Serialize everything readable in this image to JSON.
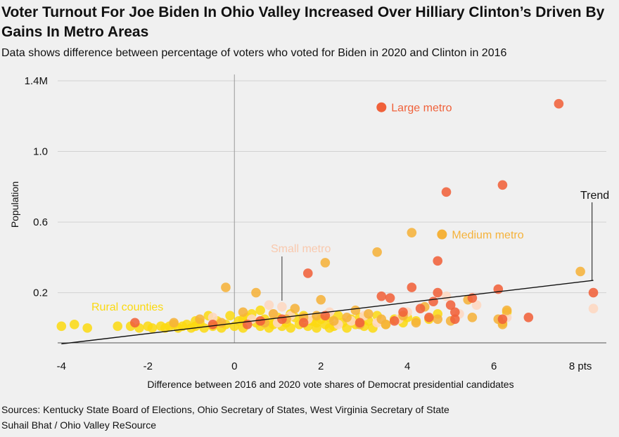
{
  "header": {
    "title": "Voter Turnout For Joe Biden In Ohio Valley Increased Over Hilliary Clinton’s Driven By Gains In Metro Areas",
    "subtitle": "Data shows difference between percentage of voters who voted for Biden in 2020 and Clinton in 2016"
  },
  "footer": {
    "sources": "Sources: Kentucky State Board of Elections, Ohio Secretary of States, West Virginia Secretary of State",
    "credit": "Suhail Bhat / Ohio Valley ReSource"
  },
  "colors": {
    "large_metro": "#f0613a",
    "medium_metro": "#f5b23a",
    "small_metro": "#fdd7c0",
    "rural": "#fbd90f",
    "background": "#f0f0f0"
  },
  "chart_data": {
    "type": "scatter",
    "xlabel": "Difference between 2016 and 2020 vote shares of Democrat presidential candidates",
    "ylabel": "Population",
    "xlim": [
      -4.2,
      8.6
    ],
    "ylim": [
      -0.1,
      1.42
    ],
    "x_ticks": [
      {
        "value": -4,
        "label": "-4"
      },
      {
        "value": -2,
        "label": "-2"
      },
      {
        "value": 0,
        "label": "0"
      },
      {
        "value": 2,
        "label": "2"
      },
      {
        "value": 4,
        "label": "4"
      },
      {
        "value": 6,
        "label": "6"
      },
      {
        "value": 8,
        "label": "8 pts"
      }
    ],
    "y_ticks": [
      {
        "value": 0.2,
        "label": "0.2"
      },
      {
        "value": 0.6,
        "label": "0.6"
      },
      {
        "value": 1.0,
        "label": "1.0"
      },
      {
        "value": 1.4,
        "label": "1.4M"
      }
    ],
    "annotations": {
      "large_metro": "Large metro",
      "medium_metro": "Medium metro",
      "small_metro": "Small metro",
      "rural": "Rural counties",
      "trend": "Trend"
    },
    "trend": {
      "x": [
        -4,
        8.3
      ],
      "y": [
        -0.09,
        0.27
      ]
    },
    "series": [
      {
        "name": "Large metro",
        "color_key": "large_metro",
        "points": [
          [
            7.5,
            1.27
          ],
          [
            6.2,
            0.81
          ],
          [
            4.9,
            0.77
          ],
          [
            1.7,
            0.31
          ],
          [
            4.7,
            0.38
          ],
          [
            8.3,
            0.2
          ],
          [
            6.1,
            0.22
          ],
          [
            4.1,
            0.23
          ],
          [
            3.4,
            0.18
          ],
          [
            3.6,
            0.17
          ],
          [
            4.7,
            0.2
          ],
          [
            5.5,
            0.17
          ],
          [
            5.0,
            0.13
          ],
          [
            5.1,
            0.09
          ],
          [
            4.3,
            0.11
          ],
          [
            4.6,
            0.15
          ],
          [
            3.9,
            0.09
          ],
          [
            5.1,
            0.05
          ],
          [
            6.2,
            0.05
          ],
          [
            6.8,
            0.06
          ],
          [
            -2.3,
            0.03
          ],
          [
            -0.5,
            0.02
          ],
          [
            1.1,
            0.05
          ],
          [
            2.1,
            0.07
          ],
          [
            3.7,
            0.04
          ],
          [
            2.9,
            0.03
          ],
          [
            0.3,
            0.02
          ],
          [
            1.6,
            0.03
          ],
          [
            4.5,
            0.06
          ],
          [
            0.6,
            0.04
          ]
        ]
      },
      {
        "name": "Medium metro",
        "color_key": "medium_metro",
        "points": [
          [
            4.1,
            0.54
          ],
          [
            4.8,
            0.53
          ],
          [
            3.3,
            0.43
          ],
          [
            2.1,
            0.37
          ],
          [
            8.0,
            0.32
          ],
          [
            -0.2,
            0.23
          ],
          [
            0.5,
            0.2
          ],
          [
            2.0,
            0.16
          ],
          [
            5.4,
            0.16
          ],
          [
            1.4,
            0.11
          ],
          [
            2.8,
            0.1
          ],
          [
            4.4,
            0.12
          ],
          [
            6.3,
            0.1
          ],
          [
            3.1,
            0.08
          ],
          [
            0.9,
            0.08
          ],
          [
            1.9,
            0.07
          ],
          [
            2.6,
            0.06
          ],
          [
            3.9,
            0.07
          ],
          [
            6.1,
            0.05
          ],
          [
            4.7,
            0.05
          ],
          [
            -0.8,
            0.05
          ],
          [
            0.2,
            0.09
          ],
          [
            1.2,
            0.05
          ],
          [
            2.3,
            0.04
          ],
          [
            3.4,
            0.05
          ],
          [
            5.5,
            0.06
          ],
          [
            6.2,
            0.02
          ],
          [
            -1.4,
            0.03
          ],
          [
            0.7,
            0.03
          ],
          [
            4.2,
            0.03
          ],
          [
            1.6,
            0.06
          ],
          [
            2.9,
            0.02
          ],
          [
            5.0,
            0.04
          ],
          [
            -0.3,
            0.03
          ],
          [
            3.5,
            0.02
          ]
        ]
      },
      {
        "name": "Small metro",
        "color_key": "small_metro",
        "points": [
          [
            8.3,
            0.11
          ],
          [
            0.8,
            0.13
          ],
          [
            1.1,
            0.12
          ],
          [
            5.6,
            0.13
          ],
          [
            4.9,
            0.18
          ],
          [
            0.9,
            0.08
          ],
          [
            1.3,
            0.07
          ],
          [
            2.2,
            0.09
          ],
          [
            3.0,
            0.07
          ],
          [
            4.0,
            0.09
          ],
          [
            6.3,
            0.06
          ],
          [
            0.4,
            0.05
          ],
          [
            1.7,
            0.05
          ],
          [
            2.7,
            0.04
          ],
          [
            3.8,
            0.05
          ],
          [
            5.2,
            0.08
          ],
          [
            -0.5,
            0.06
          ],
          [
            1.0,
            0.03
          ],
          [
            2.4,
            0.02
          ],
          [
            3.3,
            0.03
          ]
        ]
      },
      {
        "name": "Rural counties",
        "color_key": "rural",
        "points": [
          [
            -4.0,
            0.01
          ],
          [
            -3.7,
            0.02
          ],
          [
            -3.4,
            0.0
          ],
          [
            -2.7,
            0.01
          ],
          [
            -2.4,
            0.01
          ],
          [
            -2.2,
            0.0
          ],
          [
            -2.0,
            0.01
          ],
          [
            -1.9,
            0.0
          ],
          [
            -1.7,
            0.01
          ],
          [
            -1.6,
            0.0
          ],
          [
            -1.5,
            0.01
          ],
          [
            -1.3,
            0.0
          ],
          [
            -1.2,
            0.01
          ],
          [
            -1.1,
            0.02
          ],
          [
            -1.0,
            0.0
          ],
          [
            -0.9,
            0.01
          ],
          [
            -0.8,
            0.03
          ],
          [
            -0.7,
            0.0
          ],
          [
            -0.6,
            0.07
          ],
          [
            -0.5,
            0.01
          ],
          [
            -0.4,
            0.04
          ],
          [
            -0.3,
            0.0
          ],
          [
            -0.2,
            0.02
          ],
          [
            -0.1,
            0.07
          ],
          [
            0.0,
            0.01
          ],
          [
            0.1,
            0.04
          ],
          [
            0.2,
            0.0
          ],
          [
            0.3,
            0.06
          ],
          [
            0.4,
            0.08
          ],
          [
            0.5,
            0.03
          ],
          [
            0.6,
            0.01
          ],
          [
            0.7,
            0.05
          ],
          [
            0.8,
            0.0
          ],
          [
            0.9,
            0.04
          ],
          [
            1.0,
            0.06
          ],
          [
            1.1,
            0.01
          ],
          [
            1.2,
            0.03
          ],
          [
            1.3,
            0.0
          ],
          [
            1.4,
            0.06
          ],
          [
            1.5,
            0.02
          ],
          [
            1.6,
            0.07
          ],
          [
            1.7,
            0.01
          ],
          [
            1.8,
            0.04
          ],
          [
            1.9,
            0.0
          ],
          [
            2.0,
            0.05
          ],
          [
            2.1,
            0.02
          ],
          [
            2.2,
            0.06
          ],
          [
            2.3,
            0.01
          ],
          [
            2.4,
            0.07
          ],
          [
            2.5,
            0.03
          ],
          [
            2.6,
            0.0
          ],
          [
            2.7,
            0.05
          ],
          [
            2.8,
            0.02
          ],
          [
            2.9,
            0.06
          ],
          [
            3.0,
            0.01
          ],
          [
            3.1,
            0.04
          ],
          [
            3.2,
            0.0
          ],
          [
            3.3,
            0.07
          ],
          [
            3.5,
            0.02
          ],
          [
            3.7,
            0.05
          ],
          [
            3.9,
            0.03
          ],
          [
            4.0,
            0.06
          ],
          [
            4.2,
            0.04
          ],
          [
            4.5,
            0.05
          ],
          [
            4.7,
            0.08
          ],
          [
            6.2,
            0.03
          ],
          [
            6.3,
            0.09
          ],
          [
            -0.9,
            0.04
          ],
          [
            0.6,
            0.1
          ],
          [
            1.9,
            0.03
          ],
          [
            -1.4,
            0.02
          ],
          [
            0.2,
            0.05
          ],
          [
            1.3,
            0.08
          ],
          [
            2.2,
            0.0
          ],
          [
            0.9,
            0.02
          ]
        ]
      }
    ]
  }
}
